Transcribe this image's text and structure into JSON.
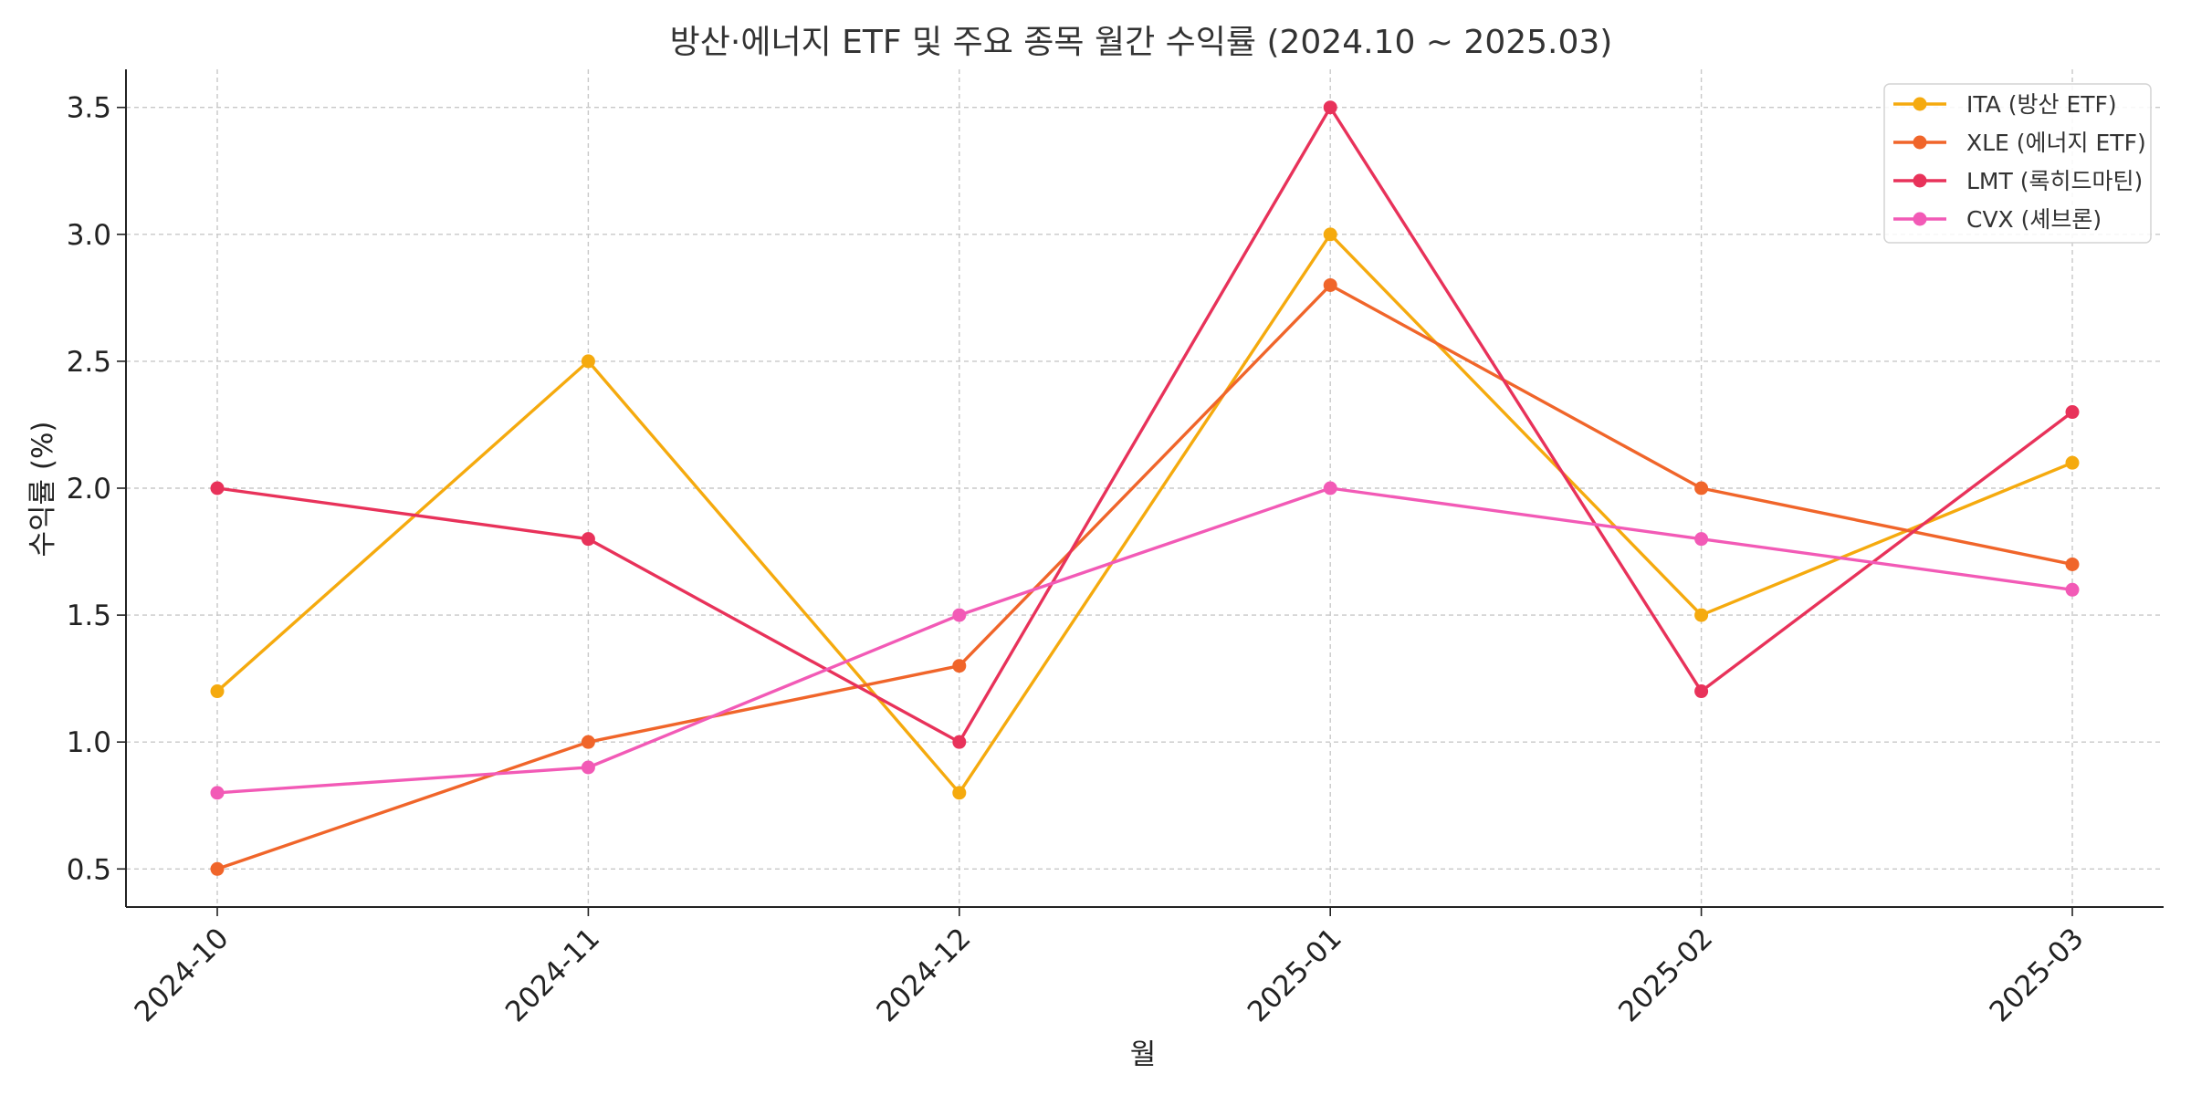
{
  "chart_data": {
    "type": "line",
    "title": "방산·에너지 ETF 및 주요 종목 월간 수익률 (2024.10 ~ 2025.03)",
    "xlabel": "월",
    "ylabel": "수익률 (%)",
    "categories": [
      "2024-10",
      "2024-11",
      "2024-12",
      "2025-01",
      "2025-02",
      "2025-03"
    ],
    "ylim": [
      0.35,
      3.65
    ],
    "yticks": [
      0.5,
      1.0,
      1.5,
      2.0,
      2.5,
      3.0,
      3.5
    ],
    "grid": true,
    "legend_position": "top-right",
    "series": [
      {
        "name": "ITA (방산 ETF)",
        "color": "#F5AA0E",
        "values": [
          1.2,
          2.5,
          0.8,
          3.0,
          1.5,
          2.1
        ]
      },
      {
        "name": "XLE (에너지 ETF)",
        "color": "#F0652A",
        "values": [
          0.5,
          1.0,
          1.3,
          2.8,
          2.0,
          1.7
        ]
      },
      {
        "name": "LMT (록히드마틴)",
        "color": "#E8325A",
        "values": [
          2.0,
          1.8,
          1.0,
          3.5,
          1.2,
          2.3
        ]
      },
      {
        "name": "CVX (셰브론)",
        "color": "#F25AB6",
        "values": [
          0.8,
          0.9,
          1.5,
          2.0,
          1.8,
          1.6
        ]
      }
    ]
  }
}
